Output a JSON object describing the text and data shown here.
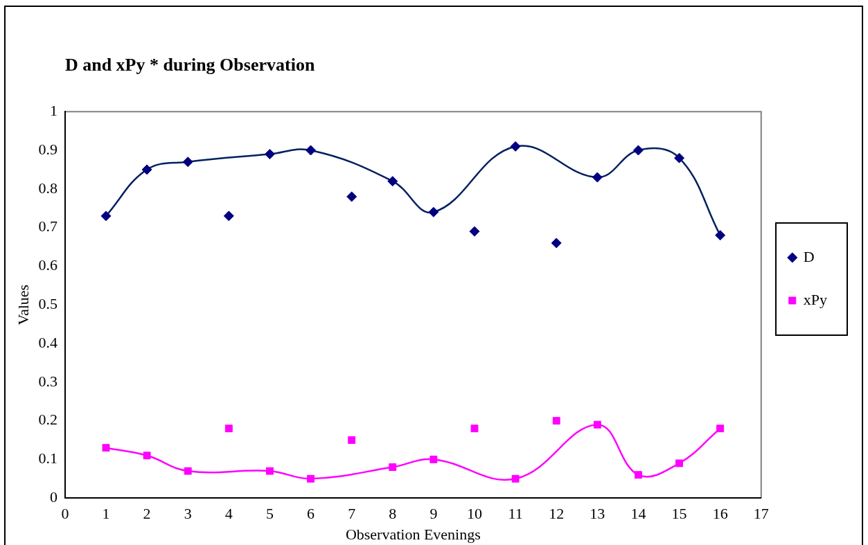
{
  "chart_data": {
    "type": "scatter",
    "title": "D and xPy * during Observation",
    "xlabel": "Observation Evenings",
    "ylabel": "Values",
    "x": [
      1,
      2,
      3,
      4,
      5,
      6,
      7,
      8,
      9,
      10,
      11,
      12,
      13,
      14,
      15,
      16
    ],
    "xlim": [
      0,
      17
    ],
    "xticks": [
      0,
      1,
      2,
      3,
      4,
      5,
      6,
      7,
      8,
      9,
      10,
      11,
      12,
      13,
      14,
      15,
      16,
      17
    ],
    "ylim": [
      0,
      1
    ],
    "yticks": [
      0,
      0.1,
      0.2,
      0.3,
      0.4,
      0.5,
      0.6,
      0.7,
      0.8,
      0.9,
      1
    ],
    "grid": false,
    "legend": "right",
    "series": [
      {
        "name": "D",
        "marker": "diamond",
        "color": "#000080",
        "values": [
          0.73,
          0.85,
          0.87,
          0.73,
          0.89,
          0.9,
          0.78,
          0.82,
          0.74,
          0.69,
          0.91,
          0.66,
          0.83,
          0.9,
          0.88,
          0.68
        ]
      },
      {
        "name": "xPy",
        "marker": "square",
        "color": "#ff00ff",
        "values": [
          0.13,
          0.11,
          0.07,
          0.18,
          0.07,
          0.05,
          0.15,
          0.08,
          0.1,
          0.18,
          0.05,
          0.2,
          0.19,
          0.06,
          0.09,
          0.18
        ]
      },
      {
        "type": "line",
        "marker": "none",
        "color": "#002060",
        "x": [
          1,
          2,
          3,
          5,
          6,
          8,
          9,
          11,
          13,
          14,
          15,
          16
        ],
        "values": [
          0.73,
          0.85,
          0.87,
          0.89,
          0.9,
          0.82,
          0.74,
          0.91,
          0.83,
          0.9,
          0.88,
          0.68
        ]
      },
      {
        "type": "line",
        "marker": "none",
        "color": "#ff00ff",
        "x": [
          1,
          2,
          3,
          5,
          6,
          8,
          9,
          11,
          13,
          14,
          15,
          16
        ],
        "values": [
          0.13,
          0.11,
          0.07,
          0.07,
          0.05,
          0.08,
          0.1,
          0.05,
          0.19,
          0.06,
          0.09,
          0.18
        ]
      }
    ]
  }
}
